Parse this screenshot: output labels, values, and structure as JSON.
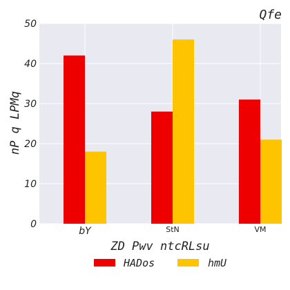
{
  "chart_data": {
    "type": "bar",
    "title": "Qfe",
    "xlabel": "ZD Pwv ntcRLsu",
    "ylabel": "nP q LPMq",
    "categories": [
      "bY",
      "StN",
      "VM"
    ],
    "series": [
      {
        "name": "HADos",
        "color": "#ee0000",
        "values": [
          42,
          28,
          31
        ]
      },
      {
        "name": "hmU",
        "color": "#ffc400",
        "values": [
          18,
          46,
          21
        ]
      }
    ],
    "ylim": [
      0,
      50
    ],
    "yticks": [
      "0",
      "10",
      "20",
      "30",
      "40",
      "50"
    ],
    "grid": true,
    "background": "#e9e9f2",
    "legend_position": "bottom"
  }
}
